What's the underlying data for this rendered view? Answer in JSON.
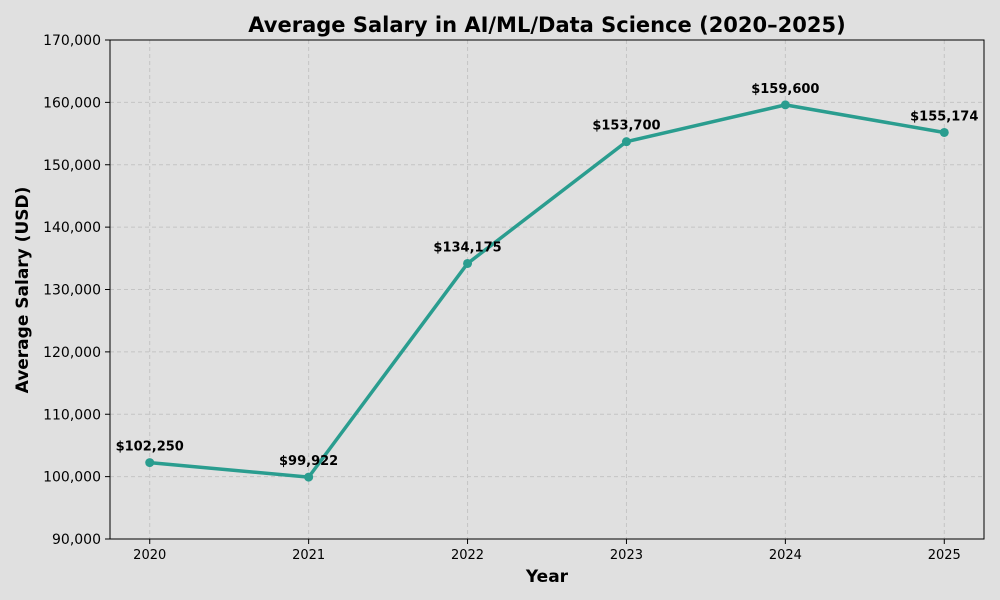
{
  "chart_data": {
    "type": "line",
    "title": "Average Salary in AI/ML/Data Science (2020–2025)",
    "xlabel": "Year",
    "ylabel": "Average Salary (USD)",
    "x": [
      2020,
      2021,
      2022,
      2023,
      2024,
      2025
    ],
    "x_tick_labels": [
      "2020",
      "2021",
      "2022",
      "2023",
      "2024",
      "2025"
    ],
    "xlim": [
      2019.75,
      2025.25
    ],
    "ylim": [
      90000,
      170000
    ],
    "y_ticks": [
      90000,
      100000,
      110000,
      120000,
      130000,
      140000,
      150000,
      160000,
      170000
    ],
    "y_tick_labels": [
      "90,000",
      "100,000",
      "110,000",
      "120,000",
      "130,000",
      "140,000",
      "150,000",
      "160,000",
      "170,000"
    ],
    "grid": true,
    "series": [
      {
        "values": [
          102250,
          99922,
          134175,
          153700,
          159600,
          155174
        ],
        "data_labels": [
          "$102,250",
          "$99,922",
          "$134,175",
          "$153,700",
          "$159,600",
          "$155,174"
        ],
        "color": "#2a9d8f"
      }
    ]
  }
}
